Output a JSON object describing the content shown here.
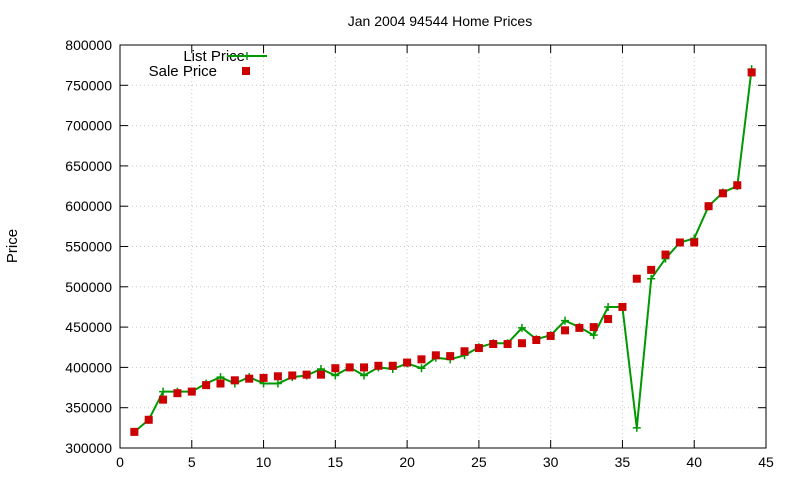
{
  "chart_data": {
    "type": "line",
    "title": "Jan 2004 94544 Home Prices",
    "xlabel": "",
    "ylabel": "Price",
    "xlim": [
      0,
      45
    ],
    "ylim": [
      300000,
      800000
    ],
    "x_ticks": [
      0,
      5,
      10,
      15,
      20,
      25,
      30,
      35,
      40,
      45
    ],
    "y_ticks": [
      300000,
      350000,
      400000,
      450000,
      500000,
      550000,
      600000,
      650000,
      700000,
      750000,
      800000
    ],
    "grid": true,
    "legend_position": "top-left",
    "x": [
      1,
      2,
      3,
      4,
      5,
      6,
      7,
      8,
      9,
      10,
      11,
      12,
      13,
      14,
      15,
      16,
      17,
      18,
      19,
      20,
      21,
      22,
      23,
      24,
      25,
      26,
      27,
      28,
      29,
      30,
      31,
      32,
      33,
      34,
      35,
      36,
      37,
      38,
      39,
      40,
      41,
      42,
      43,
      44
    ],
    "series": [
      {
        "name": "List Price",
        "style": "line+plus",
        "color": "#009900",
        "values": [
          320000,
          335000,
          370000,
          370000,
          370000,
          380000,
          388000,
          380000,
          388000,
          380000,
          380000,
          388000,
          390000,
          398000,
          390000,
          400000,
          390000,
          400000,
          398000,
          405000,
          399000,
          412000,
          410000,
          415000,
          425000,
          430000,
          430000,
          449000,
          435000,
          440000,
          458000,
          450000,
          440000,
          475000,
          475000,
          325000,
          510000,
          535000,
          555000,
          560000,
          600000,
          617000,
          625000,
          770000
        ]
      },
      {
        "name": "Sale Price",
        "style": "square-markers",
        "color": "#cc0000",
        "values": [
          320000,
          335000,
          360000,
          368000,
          370000,
          378000,
          380000,
          384000,
          386000,
          387000,
          389000,
          390000,
          391000,
          391000,
          399000,
          400000,
          400000,
          402000,
          402000,
          406000,
          410000,
          415000,
          414000,
          420000,
          424000,
          429000,
          429000,
          430000,
          434000,
          439000,
          446000,
          449000,
          450000,
          460000,
          475000,
          510000,
          521000,
          540000,
          555000,
          555000,
          600000,
          616000,
          626000,
          766000
        ]
      }
    ]
  }
}
